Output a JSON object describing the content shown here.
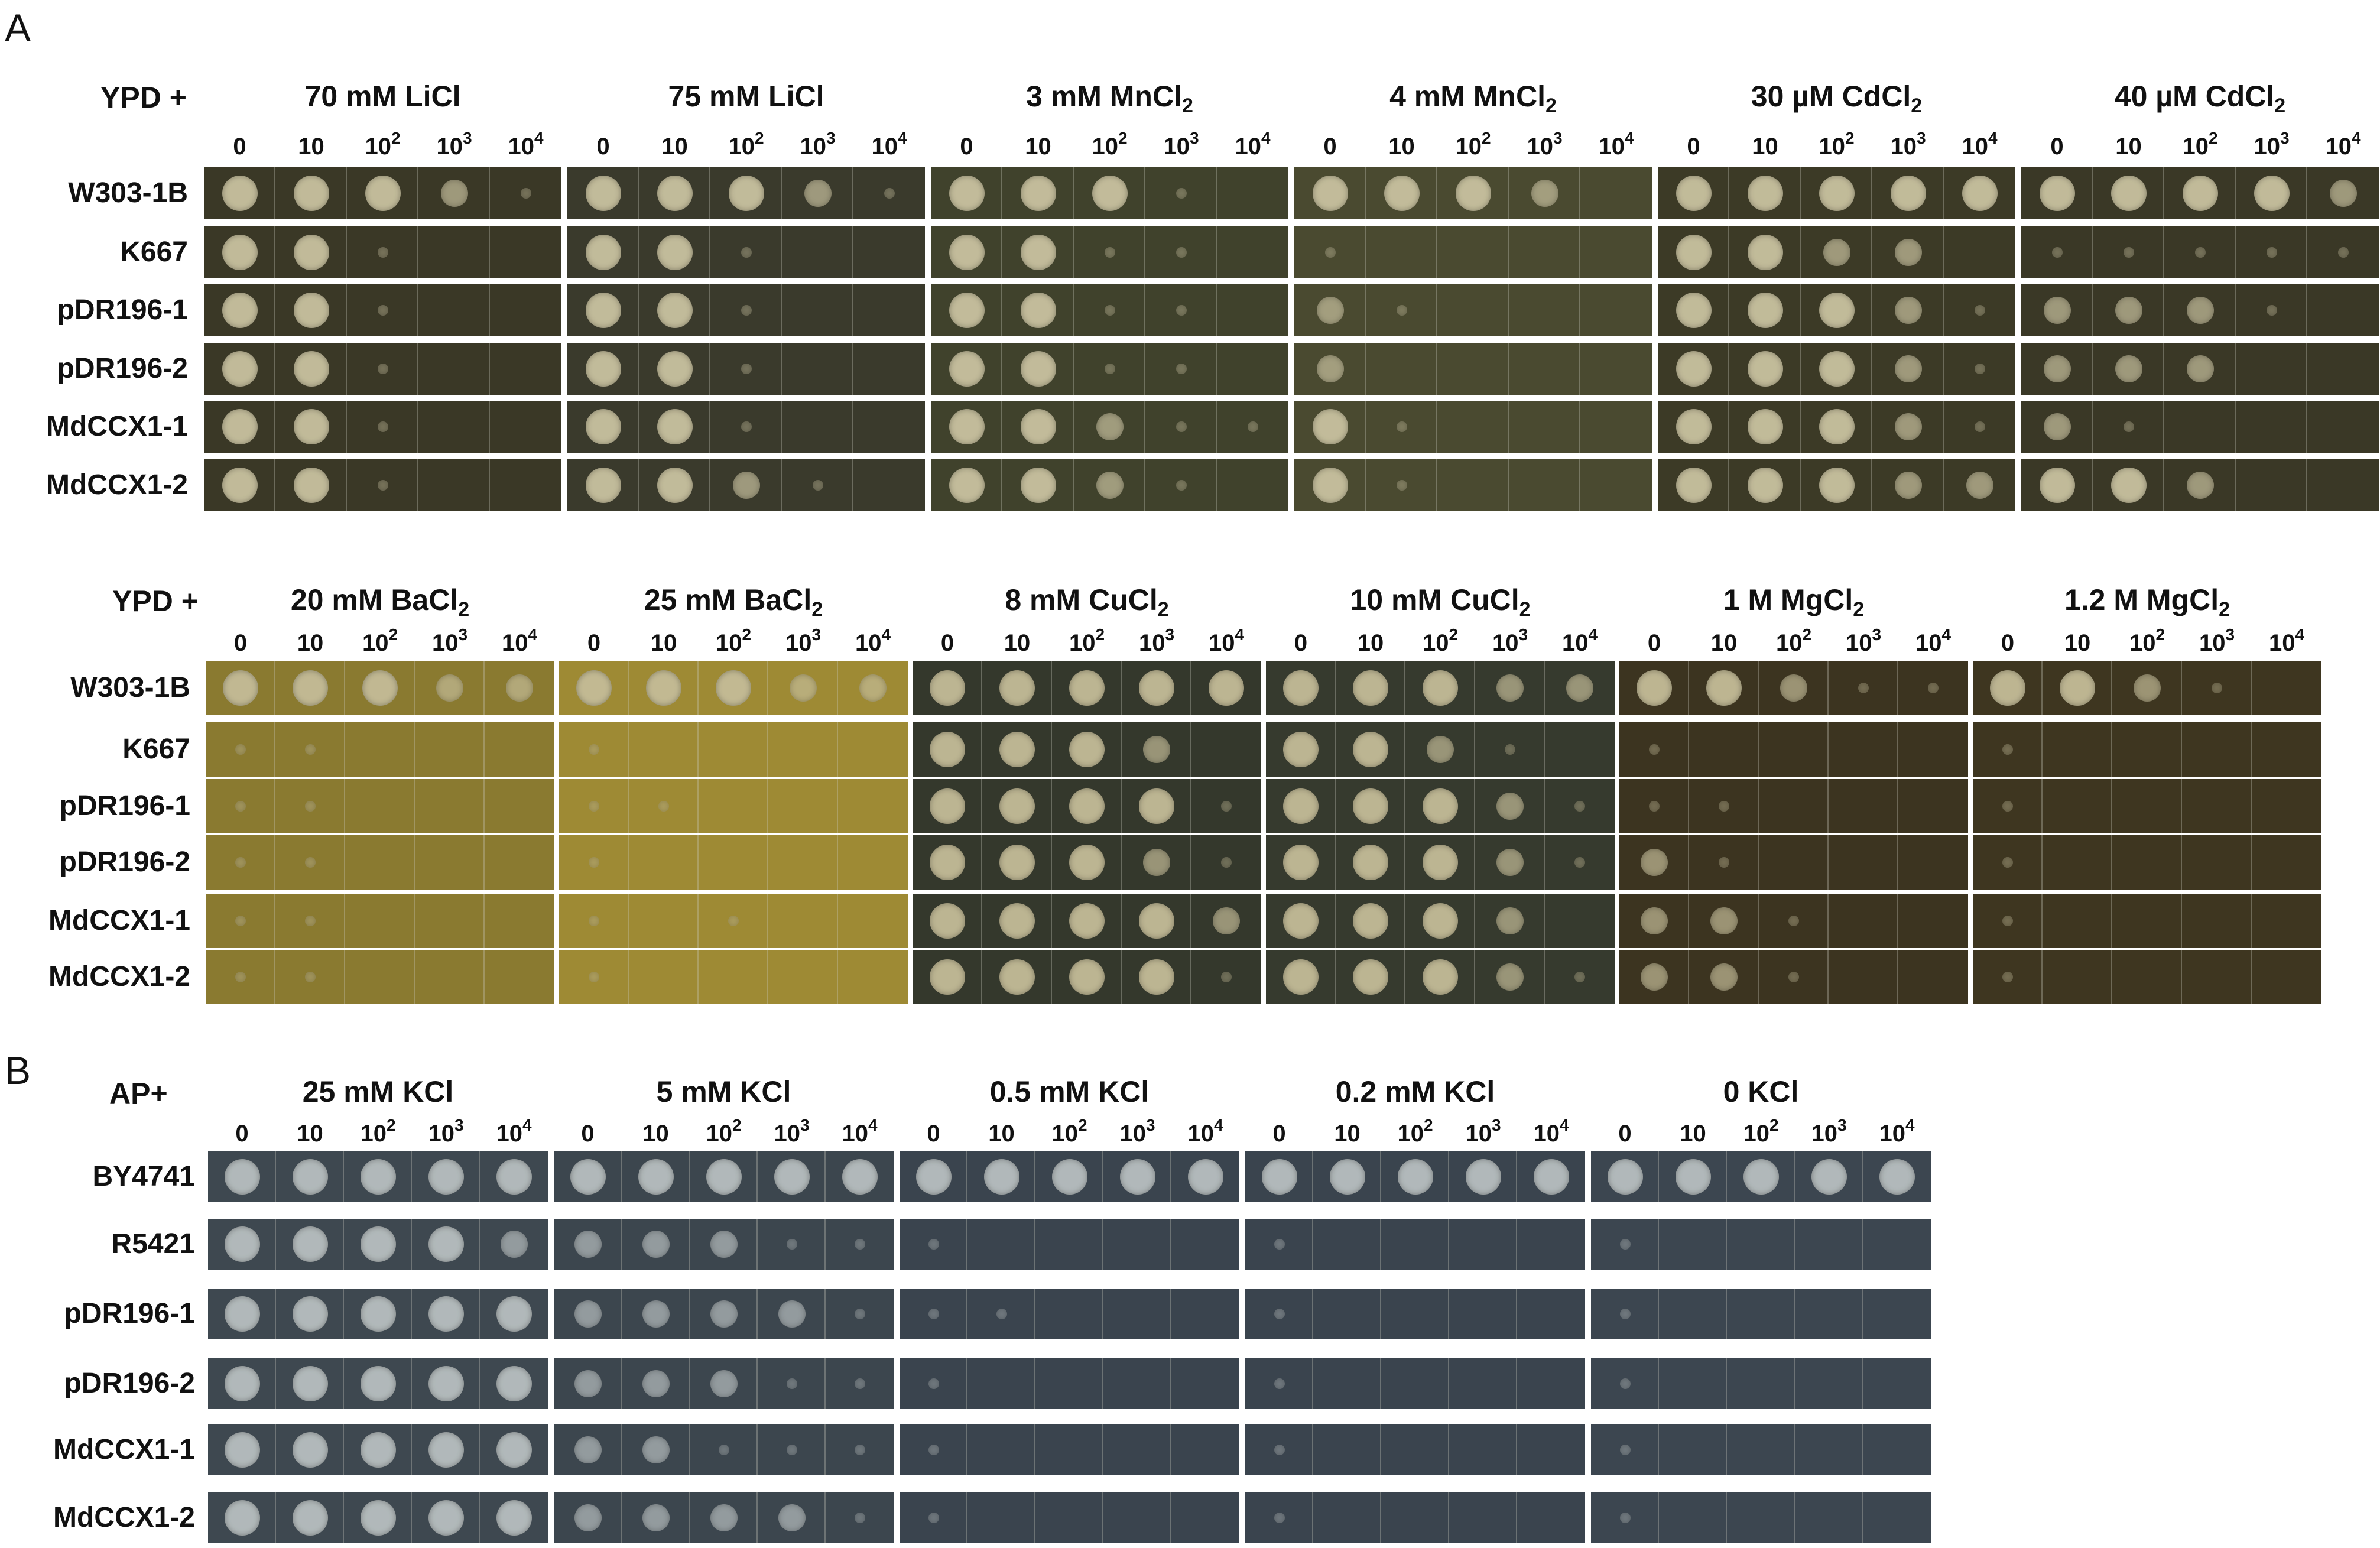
{
  "panels": [
    {
      "letter": "A",
      "blocks": [
        {
          "medium": "YPD +",
          "conditions": [
            {
              "pre": "70 mM LiCl",
              "sub": "",
              "plate_color": "#3a3826"
            },
            {
              "pre": "75 mM LiCl",
              "sub": "",
              "plate_color": "#3a3a2c"
            },
            {
              "pre": "3 mM MnCl",
              "sub": "2",
              "plate_color": "#40422c"
            },
            {
              "pre": "4 mM MnCl",
              "sub": "2",
              "plate_color": "#4a4a30"
            },
            {
              "pre": "30 µM CdCl",
              "sub": "2",
              "plate_color": "#3c3a26"
            },
            {
              "pre": "40 µM CdCl",
              "sub": "2",
              "plate_color": "#3a3826"
            }
          ],
          "strains": [
            "W303-1B",
            "K667",
            "pDR196-1",
            "pDR196-2",
            "MdCCX1-1",
            "MdCCX1-2"
          ],
          "spot_color": "#c9c2a0"
        },
        {
          "medium": "YPD +",
          "conditions": [
            {
              "pre": "20 mM BaCl",
              "sub": "2",
              "plate_color": "#8a7a30"
            },
            {
              "pre": "25 mM BaCl",
              "sub": "2",
              "plate_color": "#9e8a34"
            },
            {
              "pre": "8 mM CuCl",
              "sub": "2",
              "plate_color": "#34382c"
            },
            {
              "pre": "10 mM CuCl",
              "sub": "2",
              "plate_color": "#363a2e"
            },
            {
              "pre": "1 M MgCl",
              "sub": "2",
              "plate_color": "#3c3420"
            },
            {
              "pre": "1.2 M MgCl",
              "sub": "2",
              "plate_color": "#3e3620"
            }
          ],
          "strains": [
            "W303-1B",
            "K667",
            "pDR196-1",
            "pDR196-2",
            "MdCCX1-1",
            "MdCCX1-2"
          ],
          "spot_color": "#c4bc98"
        }
      ]
    },
    {
      "letter": "B",
      "blocks": [
        {
          "medium": "AP+",
          "conditions": [
            {
              "pre": "25 mM KCl",
              "sub": "",
              "plate_color": "#3e4850"
            },
            {
              "pre": "5 mM KCl",
              "sub": "",
              "plate_color": "#3c464e"
            },
            {
              "pre": "0.5 mM KCl",
              "sub": "",
              "plate_color": "#3a444e"
            },
            {
              "pre": "0.2 mM KCl",
              "sub": "",
              "plate_color": "#3a444e"
            },
            {
              "pre": "0 KCl",
              "sub": "",
              "plate_color": "#3c4650"
            }
          ],
          "strains": [
            "BY4741",
            "R5421",
            "pDR196-1",
            "pDR196-2",
            "MdCCX1-1",
            "MdCCX1-2"
          ],
          "spot_color": "#b8bfc0"
        }
      ]
    }
  ],
  "dilutions": [
    {
      "base": "0",
      "exp": ""
    },
    {
      "base": "10",
      "exp": ""
    },
    {
      "base": "10",
      "exp": "2"
    },
    {
      "base": "10",
      "exp": "3"
    },
    {
      "base": "10",
      "exp": "4"
    }
  ],
  "growth": [
    [
      [
        [
          3,
          3,
          3,
          2,
          1
        ],
        [
          3,
          3,
          1,
          0,
          0
        ],
        [
          3,
          3,
          1,
          0,
          0
        ],
        [
          3,
          3,
          1,
          0,
          0
        ],
        [
          3,
          3,
          1,
          0,
          0
        ],
        [
          3,
          3,
          1,
          0,
          0
        ]
      ],
      [
        [
          3,
          3,
          3,
          2,
          1
        ],
        [
          3,
          3,
          1,
          0,
          0
        ],
        [
          3,
          3,
          1,
          0,
          0
        ],
        [
          3,
          3,
          1,
          0,
          0
        ],
        [
          3,
          3,
          1,
          0,
          0
        ],
        [
          3,
          3,
          2,
          1,
          0
        ]
      ],
      [
        [
          3,
          3,
          3,
          1,
          0
        ],
        [
          3,
          3,
          1,
          1,
          0
        ],
        [
          3,
          3,
          1,
          1,
          0
        ],
        [
          3,
          3,
          1,
          1,
          0
        ],
        [
          3,
          3,
          2,
          1,
          1
        ],
        [
          3,
          3,
          2,
          1,
          0
        ]
      ],
      [
        [
          3,
          3,
          3,
          2,
          0
        ],
        [
          1,
          0,
          0,
          0,
          0
        ],
        [
          2,
          1,
          0,
          0,
          0
        ],
        [
          2,
          0,
          0,
          0,
          0
        ],
        [
          3,
          1,
          0,
          0,
          0
        ],
        [
          3,
          1,
          0,
          0,
          0
        ]
      ],
      [
        [
          3,
          3,
          3,
          3,
          3
        ],
        [
          3,
          3,
          2,
          2,
          0
        ],
        [
          3,
          3,
          3,
          2,
          1
        ],
        [
          3,
          3,
          3,
          2,
          1
        ],
        [
          3,
          3,
          3,
          2,
          1
        ],
        [
          3,
          3,
          3,
          2,
          2
        ]
      ],
      [
        [
          3,
          3,
          3,
          3,
          2
        ],
        [
          1,
          1,
          1,
          1,
          1
        ],
        [
          2,
          2,
          2,
          1,
          0
        ],
        [
          2,
          2,
          2,
          0,
          0
        ],
        [
          2,
          1,
          0,
          0,
          0
        ],
        [
          3,
          3,
          2,
          0,
          0
        ]
      ]
    ],
    [
      [
        [
          3,
          3,
          3,
          2,
          2
        ],
        [
          1,
          1,
          0,
          0,
          0
        ],
        [
          1,
          1,
          0,
          0,
          0
        ],
        [
          1,
          1,
          0,
          0,
          0
        ],
        [
          1,
          1,
          0,
          0,
          0
        ],
        [
          1,
          1,
          0,
          0,
          0
        ]
      ],
      [
        [
          3,
          3,
          3,
          2,
          2
        ],
        [
          1,
          0,
          0,
          0,
          0
        ],
        [
          1,
          1,
          0,
          0,
          0
        ],
        [
          1,
          0,
          0,
          0,
          0
        ],
        [
          1,
          0,
          1,
          0,
          0
        ],
        [
          1,
          0,
          0,
          0,
          0
        ]
      ],
      [
        [
          3,
          3,
          3,
          3,
          3
        ],
        [
          3,
          3,
          3,
          2,
          0
        ],
        [
          3,
          3,
          3,
          3,
          1
        ],
        [
          3,
          3,
          3,
          2,
          1
        ],
        [
          3,
          3,
          3,
          3,
          2
        ],
        [
          3,
          3,
          3,
          3,
          1
        ]
      ],
      [
        [
          3,
          3,
          3,
          2,
          2
        ],
        [
          3,
          3,
          2,
          1,
          0
        ],
        [
          3,
          3,
          3,
          2,
          1
        ],
        [
          3,
          3,
          3,
          2,
          1
        ],
        [
          3,
          3,
          3,
          2,
          0
        ],
        [
          3,
          3,
          3,
          2,
          1
        ]
      ],
      [
        [
          3,
          3,
          2,
          1,
          1
        ],
        [
          1,
          0,
          0,
          0,
          0
        ],
        [
          1,
          1,
          0,
          0,
          0
        ],
        [
          2,
          1,
          0,
          0,
          0
        ],
        [
          2,
          2,
          1,
          0,
          0
        ],
        [
          2,
          2,
          1,
          0,
          0
        ]
      ],
      [
        [
          3,
          3,
          2,
          1,
          0
        ],
        [
          1,
          0,
          0,
          0,
          0
        ],
        [
          1,
          0,
          0,
          0,
          0
        ],
        [
          1,
          0,
          0,
          0,
          0
        ],
        [
          1,
          0,
          0,
          0,
          0
        ],
        [
          1,
          0,
          0,
          0,
          0
        ]
      ]
    ],
    [
      [
        [
          3,
          3,
          3,
          3,
          3
        ],
        [
          3,
          3,
          3,
          3,
          2
        ],
        [
          3,
          3,
          3,
          3,
          3
        ],
        [
          3,
          3,
          3,
          3,
          3
        ],
        [
          3,
          3,
          3,
          3,
          3
        ],
        [
          3,
          3,
          3,
          3,
          3
        ]
      ],
      [
        [
          3,
          3,
          3,
          3,
          3
        ],
        [
          2,
          2,
          2,
          1,
          1
        ],
        [
          2,
          2,
          2,
          2,
          1
        ],
        [
          2,
          2,
          2,
          1,
          1
        ],
        [
          2,
          2,
          1,
          1,
          1
        ],
        [
          2,
          2,
          2,
          2,
          1
        ]
      ],
      [
        [
          3,
          3,
          3,
          3,
          3
        ],
        [
          1,
          0,
          0,
          0,
          0
        ],
        [
          1,
          1,
          0,
          0,
          0
        ],
        [
          1,
          0,
          0,
          0,
          0
        ],
        [
          1,
          0,
          0,
          0,
          0
        ],
        [
          1,
          0,
          0,
          0,
          0
        ]
      ],
      [
        [
          3,
          3,
          3,
          3,
          3
        ],
        [
          1,
          0,
          0,
          0,
          0
        ],
        [
          1,
          0,
          0,
          0,
          0
        ],
        [
          1,
          0,
          0,
          0,
          0
        ],
        [
          1,
          0,
          0,
          0,
          0
        ],
        [
          1,
          0,
          0,
          0,
          0
        ]
      ],
      [
        [
          3,
          3,
          3,
          3,
          3
        ],
        [
          1,
          0,
          0,
          0,
          0
        ],
        [
          1,
          0,
          0,
          0,
          0
        ],
        [
          1,
          0,
          0,
          0,
          0
        ],
        [
          1,
          0,
          0,
          0,
          0
        ],
        [
          1,
          0,
          0,
          0,
          0
        ]
      ]
    ]
  ]
}
